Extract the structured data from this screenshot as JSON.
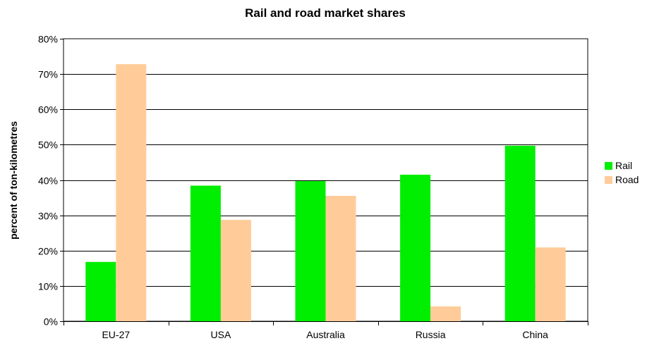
{
  "chart_data": {
    "type": "bar",
    "title": "Rail and road market shares",
    "xlabel": "",
    "ylabel": "percent of ton-kilometres",
    "categories": [
      "EU-27",
      "USA",
      "Australia",
      "Russia",
      "China"
    ],
    "series": [
      {
        "name": "Rail",
        "color": "#00ee00",
        "values": [
          16.8,
          38.4,
          39.7,
          41.5,
          49.7
        ]
      },
      {
        "name": "Road",
        "color": "#ffcc99",
        "values": [
          72.8,
          28.7,
          35.5,
          4.2,
          20.9
        ]
      }
    ],
    "ylim": [
      0,
      80
    ],
    "yticks": [
      "0%",
      "10%",
      "20%",
      "30%",
      "40%",
      "50%",
      "60%",
      "70%",
      "80%"
    ],
    "grid": true,
    "legend_position": "right"
  }
}
